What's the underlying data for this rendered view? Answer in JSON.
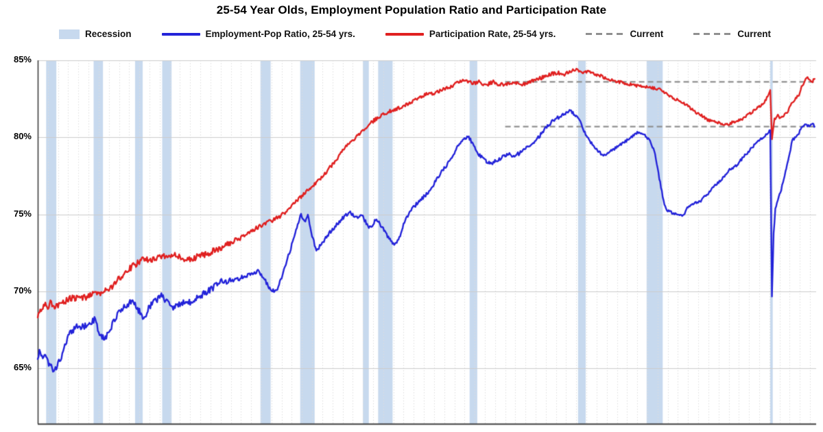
{
  "page": {
    "title": "25-54 Year Olds, Employment Population Ratio and Participation Rate"
  },
  "legend": {
    "items": [
      {
        "label": "Recession",
        "swatch": "band",
        "color": "#c7d9ee"
      },
      {
        "label": "Employment-Pop Ratio, 25-54 yrs.",
        "swatch": "line",
        "color": "#2323d9"
      },
      {
        "label": "Participation Rate, 25-54 yrs.",
        "swatch": "line",
        "color": "#e02020"
      },
      {
        "label": "Current",
        "swatch": "dashed",
        "color": "#8f8f8f"
      },
      {
        "label": "Current",
        "swatch": "dashed",
        "color": "#8f8f8f"
      }
    ]
  },
  "chart_data": {
    "type": "line",
    "title": "25-54 Year Olds, Employment Population Ratio and Participation Rate",
    "xlabel": "",
    "ylabel": "",
    "x_range": [
      1948,
      2024.6
    ],
    "ylim": [
      61.4,
      85.0
    ],
    "grid": {
      "horizontal": true,
      "vertical_yearly": true
    },
    "legend_position": "top",
    "y_ticks": [
      {
        "value": 85,
        "label": "85%"
      },
      {
        "value": 80,
        "label": "80%"
      },
      {
        "value": 75,
        "label": "75%"
      },
      {
        "value": 70,
        "label": "70%"
      },
      {
        "value": 65,
        "label": "65%"
      }
    ],
    "colors": {
      "recession_band": "#c7d9ee",
      "grid_vertical": "#dedede",
      "grid_horizontal": "#cccccc",
      "axis_spine": "#3f3f3f",
      "current_line": "#8f8f8f"
    },
    "recessions": [
      [
        1948.83,
        1949.83
      ],
      [
        1953.5,
        1954.42
      ],
      [
        1957.58,
        1958.33
      ],
      [
        1960.25,
        1961.17
      ],
      [
        1969.92,
        1970.92
      ],
      [
        1973.83,
        1975.25
      ],
      [
        1980.0,
        1980.58
      ],
      [
        1981.5,
        1982.92
      ],
      [
        1990.5,
        1991.25
      ],
      [
        2001.17,
        2001.92
      ],
      [
        2007.92,
        2009.5
      ],
      [
        2020.083,
        2020.33
      ]
    ],
    "current_lines": [
      {
        "name": "Participation Rate current",
        "value": 83.6,
        "from_year": 1994,
        "color": "#8f8f8f"
      },
      {
        "name": "Employment-Pop Ratio current",
        "value": 80.7,
        "from_year": 1994,
        "color": "#8f8f8f"
      }
    ],
    "series": [
      {
        "name": "Participation Rate, 25-54 yrs.",
        "color": "#e02020",
        "points": [
          [
            1948.0,
            68.3
          ],
          [
            1948.2,
            68.9
          ],
          [
            1948.45,
            68.8
          ],
          [
            1948.7,
            69.2
          ],
          [
            1949.0,
            68.9
          ],
          [
            1949.3,
            69.3
          ],
          [
            1949.7,
            69.0
          ],
          [
            1950.2,
            69.2
          ],
          [
            1950.8,
            69.4
          ],
          [
            1951.4,
            69.6
          ],
          [
            1952.0,
            69.5
          ],
          [
            1952.7,
            69.6
          ],
          [
            1953.4,
            69.8
          ],
          [
            1954.1,
            69.9
          ],
          [
            1954.8,
            70.1
          ],
          [
            1955.5,
            70.4
          ],
          [
            1956.1,
            70.9
          ],
          [
            1956.7,
            71.3
          ],
          [
            1957.3,
            71.6
          ],
          [
            1957.9,
            71.9
          ],
          [
            1958.5,
            72.1
          ],
          [
            1959.1,
            72.0
          ],
          [
            1959.7,
            72.1
          ],
          [
            1960.3,
            72.3
          ],
          [
            1961.0,
            72.2
          ],
          [
            1961.6,
            72.4
          ],
          [
            1962.3,
            72.1
          ],
          [
            1963.1,
            72.1
          ],
          [
            1963.9,
            72.3
          ],
          [
            1964.7,
            72.4
          ],
          [
            1965.5,
            72.7
          ],
          [
            1966.3,
            72.9
          ],
          [
            1967.1,
            73.2
          ],
          [
            1967.9,
            73.5
          ],
          [
            1968.7,
            73.8
          ],
          [
            1969.5,
            74.1
          ],
          [
            1970.3,
            74.4
          ],
          [
            1971.1,
            74.6
          ],
          [
            1971.9,
            74.9
          ],
          [
            1972.7,
            75.3
          ],
          [
            1973.5,
            75.9
          ],
          [
            1974.3,
            76.4
          ],
          [
            1975.1,
            76.9
          ],
          [
            1975.9,
            77.4
          ],
          [
            1976.7,
            78.0
          ],
          [
            1977.5,
            78.6
          ],
          [
            1978.3,
            79.4
          ],
          [
            1979.1,
            79.9
          ],
          [
            1979.9,
            80.4
          ],
          [
            1980.7,
            80.9
          ],
          [
            1981.5,
            81.3
          ],
          [
            1982.3,
            81.6
          ],
          [
            1983.1,
            81.8
          ],
          [
            1983.9,
            82.0
          ],
          [
            1984.7,
            82.3
          ],
          [
            1985.5,
            82.6
          ],
          [
            1986.3,
            82.8
          ],
          [
            1987.1,
            82.9
          ],
          [
            1987.9,
            83.1
          ],
          [
            1988.7,
            83.3
          ],
          [
            1989.5,
            83.6
          ],
          [
            1990.1,
            83.7
          ],
          [
            1990.8,
            83.5
          ],
          [
            1991.4,
            83.6
          ],
          [
            1992.1,
            83.4
          ],
          [
            1992.8,
            83.6
          ],
          [
            1993.5,
            83.4
          ],
          [
            1994.2,
            83.5
          ],
          [
            1994.9,
            83.6
          ],
          [
            1995.6,
            83.4
          ],
          [
            1996.3,
            83.6
          ],
          [
            1997.0,
            83.7
          ],
          [
            1997.7,
            83.9
          ],
          [
            1998.4,
            84.1
          ],
          [
            1999.1,
            84.2
          ],
          [
            1999.8,
            84.1
          ],
          [
            2000.4,
            84.3
          ],
          [
            2001.0,
            84.4
          ],
          [
            2001.6,
            84.2
          ],
          [
            2002.2,
            84.3
          ],
          [
            2002.8,
            84.1
          ],
          [
            2003.4,
            84.0
          ],
          [
            2004.0,
            83.8
          ],
          [
            2004.6,
            83.7
          ],
          [
            2005.2,
            83.6
          ],
          [
            2005.9,
            83.5
          ],
          [
            2006.6,
            83.4
          ],
          [
            2007.3,
            83.3
          ],
          [
            2008.0,
            83.3
          ],
          [
            2008.6,
            83.2
          ],
          [
            2009.2,
            83.1
          ],
          [
            2009.8,
            82.9
          ],
          [
            2010.4,
            82.6
          ],
          [
            2011.0,
            82.4
          ],
          [
            2011.6,
            82.2
          ],
          [
            2012.2,
            81.9
          ],
          [
            2012.8,
            81.6
          ],
          [
            2013.4,
            81.4
          ],
          [
            2014.0,
            81.1
          ],
          [
            2014.6,
            81.0
          ],
          [
            2015.2,
            80.9
          ],
          [
            2015.8,
            80.8
          ],
          [
            2016.4,
            81.0
          ],
          [
            2017.0,
            81.1
          ],
          [
            2017.6,
            81.3
          ],
          [
            2018.2,
            81.6
          ],
          [
            2018.8,
            81.9
          ],
          [
            2019.4,
            82.2
          ],
          [
            2019.8,
            82.6
          ],
          [
            2020.083,
            83.0
          ],
          [
            2020.25,
            79.9
          ],
          [
            2020.5,
            81.2
          ],
          [
            2020.83,
            81.4
          ],
          [
            2021.08,
            81.2
          ],
          [
            2021.42,
            81.4
          ],
          [
            2021.75,
            81.6
          ],
          [
            2022.0,
            82.0
          ],
          [
            2022.25,
            82.3
          ],
          [
            2022.58,
            82.5
          ],
          [
            2022.92,
            82.8
          ],
          [
            2023.17,
            83.3
          ],
          [
            2023.42,
            83.5
          ],
          [
            2023.67,
            83.9
          ],
          [
            2023.92,
            83.7
          ],
          [
            2024.17,
            83.6
          ],
          [
            2024.45,
            83.8
          ]
        ]
      },
      {
        "name": "Employment-Pop Ratio, 25-54 yrs.",
        "color": "#2323d9",
        "points": [
          [
            1948.0,
            65.6
          ],
          [
            1948.17,
            66.1
          ],
          [
            1948.42,
            65.7
          ],
          [
            1948.75,
            65.9
          ],
          [
            1949.1,
            65.2
          ],
          [
            1949.6,
            64.9
          ],
          [
            1949.9,
            65.1
          ],
          [
            1950.4,
            65.9
          ],
          [
            1951.0,
            67.1
          ],
          [
            1951.8,
            67.7
          ],
          [
            1952.6,
            67.7
          ],
          [
            1953.2,
            68.0
          ],
          [
            1953.6,
            68.2
          ],
          [
            1954.1,
            67.2
          ],
          [
            1954.6,
            66.9
          ],
          [
            1955.3,
            67.8
          ],
          [
            1956.1,
            68.8
          ],
          [
            1956.8,
            69.1
          ],
          [
            1957.3,
            69.4
          ],
          [
            1957.9,
            68.8
          ],
          [
            1958.4,
            68.2
          ],
          [
            1959.0,
            69.0
          ],
          [
            1959.6,
            69.4
          ],
          [
            1960.2,
            69.7
          ],
          [
            1960.8,
            69.3
          ],
          [
            1961.3,
            68.9
          ],
          [
            1962.0,
            69.2
          ],
          [
            1963.0,
            69.3
          ],
          [
            1964.0,
            69.7
          ],
          [
            1965.0,
            70.1
          ],
          [
            1966.0,
            70.6
          ],
          [
            1967.0,
            70.7
          ],
          [
            1968.0,
            70.9
          ],
          [
            1969.0,
            71.1
          ],
          [
            1969.7,
            71.3
          ],
          [
            1970.3,
            70.8
          ],
          [
            1970.9,
            70.1
          ],
          [
            1971.5,
            70.0
          ],
          [
            1972.3,
            71.5
          ],
          [
            1973.0,
            73.0
          ],
          [
            1973.5,
            74.2
          ],
          [
            1973.9,
            75.0
          ],
          [
            1974.25,
            74.5
          ],
          [
            1974.6,
            74.9
          ],
          [
            1975.0,
            73.6
          ],
          [
            1975.4,
            72.7
          ],
          [
            1975.9,
            73.0
          ],
          [
            1976.6,
            73.7
          ],
          [
            1977.4,
            74.3
          ],
          [
            1978.2,
            74.9
          ],
          [
            1978.8,
            75.1
          ],
          [
            1979.4,
            74.8
          ],
          [
            1979.9,
            75.0
          ],
          [
            1980.4,
            74.3
          ],
          [
            1980.7,
            74.1
          ],
          [
            1981.2,
            74.6
          ],
          [
            1981.6,
            74.5
          ],
          [
            1982.1,
            73.9
          ],
          [
            1982.7,
            73.3
          ],
          [
            1983.1,
            73.0
          ],
          [
            1983.5,
            73.3
          ],
          [
            1984.1,
            74.6
          ],
          [
            1984.9,
            75.4
          ],
          [
            1985.6,
            75.9
          ],
          [
            1986.4,
            76.4
          ],
          [
            1987.1,
            77.1
          ],
          [
            1987.9,
            77.9
          ],
          [
            1988.6,
            78.5
          ],
          [
            1989.3,
            79.4
          ],
          [
            1989.9,
            79.9
          ],
          [
            1990.35,
            80.1
          ],
          [
            1990.9,
            79.5
          ],
          [
            1991.4,
            78.9
          ],
          [
            1992.0,
            78.5
          ],
          [
            1992.6,
            78.3
          ],
          [
            1993.1,
            78.5
          ],
          [
            1993.7,
            78.7
          ],
          [
            1994.3,
            78.9
          ],
          [
            1994.9,
            78.8
          ],
          [
            1995.5,
            79.0
          ],
          [
            1996.1,
            79.3
          ],
          [
            1996.8,
            79.7
          ],
          [
            1997.4,
            80.1
          ],
          [
            1998.1,
            80.7
          ],
          [
            1998.8,
            81.1
          ],
          [
            1999.5,
            81.4
          ],
          [
            2000.1,
            81.6
          ],
          [
            2000.35,
            81.8
          ],
          [
            2000.8,
            81.5
          ],
          [
            2001.3,
            81.2
          ],
          [
            2001.9,
            80.2
          ],
          [
            2002.5,
            79.6
          ],
          [
            2003.1,
            79.1
          ],
          [
            2003.7,
            78.8
          ],
          [
            2004.4,
            79.1
          ],
          [
            2005.1,
            79.4
          ],
          [
            2005.8,
            79.7
          ],
          [
            2006.4,
            80.0
          ],
          [
            2007.0,
            80.3
          ],
          [
            2007.7,
            80.2
          ],
          [
            2008.2,
            79.8
          ],
          [
            2008.7,
            79.1
          ],
          [
            2009.1,
            77.6
          ],
          [
            2009.6,
            75.8
          ],
          [
            2010.0,
            75.2
          ],
          [
            2010.5,
            75.1
          ],
          [
            2011.0,
            74.9
          ],
          [
            2011.5,
            74.9
          ],
          [
            2012.0,
            75.5
          ],
          [
            2012.6,
            75.7
          ],
          [
            2013.3,
            75.9
          ],
          [
            2014.0,
            76.4
          ],
          [
            2014.8,
            77.0
          ],
          [
            2015.5,
            77.4
          ],
          [
            2016.1,
            77.9
          ],
          [
            2016.8,
            78.2
          ],
          [
            2017.4,
            78.7
          ],
          [
            2018.1,
            79.2
          ],
          [
            2018.8,
            79.7
          ],
          [
            2019.4,
            80.0
          ],
          [
            2019.9,
            80.3
          ],
          [
            2020.083,
            80.5
          ],
          [
            2020.25,
            69.6
          ],
          [
            2020.42,
            73.8
          ],
          [
            2020.58,
            75.3
          ],
          [
            2020.83,
            76.0
          ],
          [
            2021.08,
            76.4
          ],
          [
            2021.42,
            77.3
          ],
          [
            2021.75,
            78.2
          ],
          [
            2022.0,
            78.9
          ],
          [
            2022.25,
            79.8
          ],
          [
            2022.58,
            80.0
          ],
          [
            2022.92,
            80.3
          ],
          [
            2023.17,
            80.6
          ],
          [
            2023.5,
            80.9
          ],
          [
            2023.75,
            80.7
          ],
          [
            2024.0,
            80.8
          ],
          [
            2024.2,
            80.9
          ],
          [
            2024.45,
            80.7
          ]
        ]
      }
    ]
  }
}
